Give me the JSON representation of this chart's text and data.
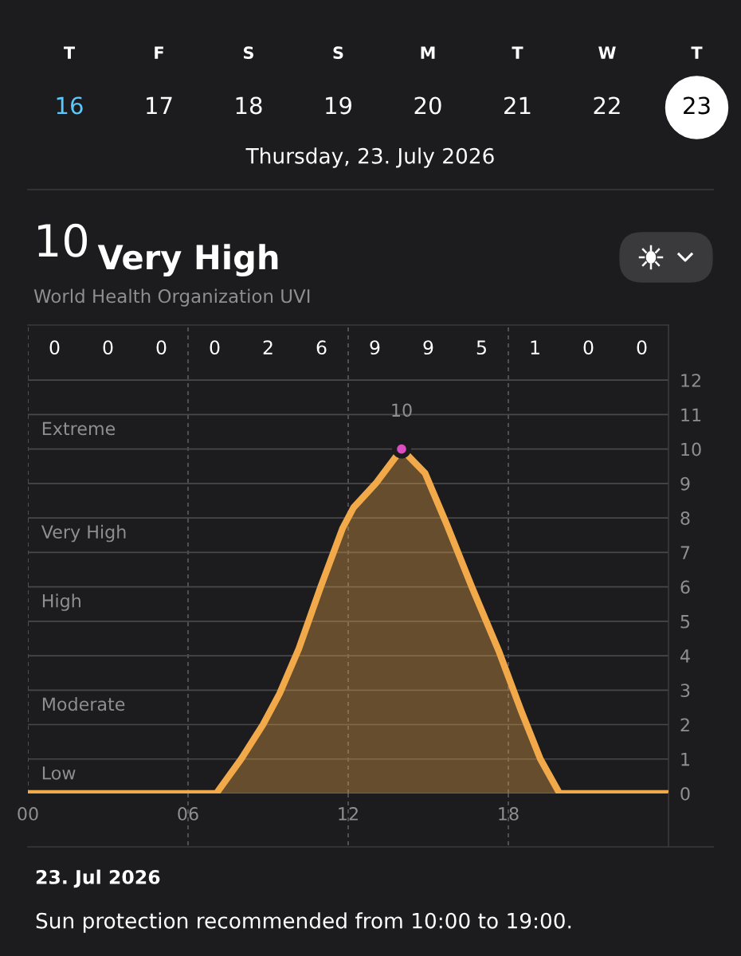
{
  "chart_data": {
    "type": "area",
    "title": "10 Very High",
    "subtitle": "World Health Organization UVI",
    "x": [
      0,
      7.06,
      7.99,
      8.81,
      9.43,
      10.15,
      10.97,
      11.79,
      12.2,
      13.03,
      14.0,
      14.88,
      15.7,
      16.63,
      17.66,
      18.48,
      19.2,
      19.92,
      24
    ],
    "series": [
      {
        "color": "#f2a94a",
        "values": [
          0,
          0,
          1.0,
          2.0,
          2.9,
          4.2,
          6.0,
          7.7,
          8.3,
          9.0,
          10,
          9.3,
          7.8,
          6.0,
          4.1,
          2.4,
          1.0,
          0,
          0
        ]
      },
      {
        "type": "scatter",
        "x": [
          14
        ],
        "values": [
          10
        ],
        "color": "#d94fc0",
        "marker": "circle"
      }
    ],
    "xlim": [
      0,
      24
    ],
    "xticks": [
      {
        "value": 0,
        "label": "00"
      },
      {
        "value": 6,
        "label": "06"
      },
      {
        "value": 12,
        "label": "12"
      },
      {
        "value": 18,
        "label": "18"
      }
    ],
    "ylim": [
      0,
      13.6
    ],
    "yticks": [
      0,
      1,
      2,
      3,
      4,
      5,
      6,
      7,
      8,
      9,
      10,
      11,
      12
    ],
    "grid": true,
    "annotations": [
      "T",
      "F",
      "S",
      "S",
      "M",
      "T",
      "W",
      "T",
      "16",
      "17",
      "18",
      "19",
      "20",
      "21",
      "22",
      "23",
      "Thursday, 23. July 2026",
      "23. Jul 2026",
      "Sun protection recommended from 10:00 to 19:00.",
      "0",
      "0",
      "0",
      "0",
      "2",
      "6",
      "9",
      "9",
      "5",
      "1",
      "0",
      "0",
      "Low",
      "Moderate",
      "High",
      "Very High",
      "Extreme",
      {
        "text": "10",
        "x": 14,
        "y": 10
      }
    ]
  }
}
